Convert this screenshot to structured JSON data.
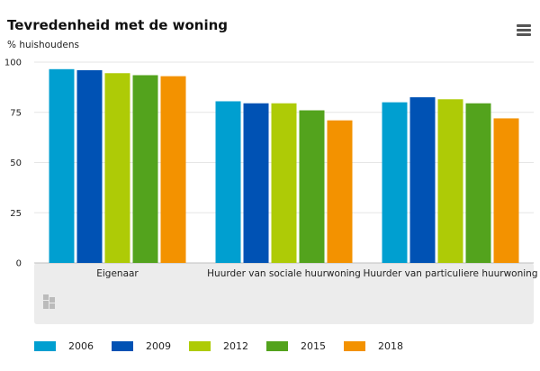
{
  "chart_data": {
    "type": "bar",
    "title": "Tevredenheid met de woning",
    "subtitle": "% huishoudens",
    "categories": [
      "Eigenaar",
      "Huurder van sociale huurwoning",
      "Huurder van particuliere huurwoning"
    ],
    "series": [
      {
        "name": "2006",
        "color": "#009fd0",
        "values": [
          96.5,
          80.5,
          80
        ]
      },
      {
        "name": "2009",
        "color": "#0052b4",
        "values": [
          96,
          79.5,
          82.5
        ]
      },
      {
        "name": "2012",
        "color": "#aecb06",
        "values": [
          94.5,
          79.5,
          81.5
        ]
      },
      {
        "name": "2015",
        "color": "#53a31d",
        "values": [
          93.5,
          76,
          79.5
        ]
      },
      {
        "name": "2018",
        "color": "#f39200",
        "values": [
          93,
          71,
          72
        ]
      }
    ],
    "yticks": [
      0,
      25,
      50,
      75,
      100
    ],
    "ylim": [
      0,
      100
    ],
    "grid": true,
    "legend": "bottom"
  }
}
